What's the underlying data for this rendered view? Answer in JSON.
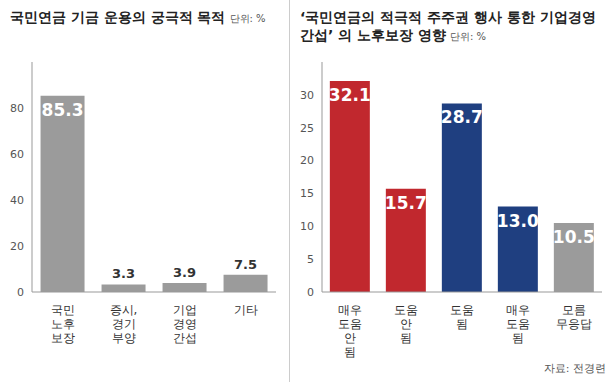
{
  "chart_data": [
    {
      "type": "bar",
      "title": "국민연금 기금 운용의 궁극적 목적",
      "subtitle": "단위: %",
      "categories": [
        "국민 노후 보장",
        "증시, 경기 부양",
        "기업 경영 간섭",
        "기타"
      ],
      "values": [
        85.3,
        3.3,
        3.9,
        7.5
      ],
      "color": "#9b9b9b",
      "ylim": [
        0,
        100
      ],
      "yticks": [
        0,
        20,
        40,
        60,
        80
      ],
      "grid": false,
      "data_labels": true
    },
    {
      "type": "bar",
      "title": "‘국민연금의 적극적 주주권 행사 통한 기업경영 간섭’ 의 노후보장 영향",
      "subtitle": "단위: %",
      "categories": [
        "매우 도움 안 됨",
        "도움 안 됨",
        "도움 됨",
        "매우 도움 됨",
        "모름 무응답"
      ],
      "values": [
        32.1,
        15.7,
        28.7,
        13.0,
        10.5
      ],
      "value_labels": [
        "32.1",
        "15.7",
        "28.7",
        "13.0",
        "10.5"
      ],
      "colors": [
        "#c1282e",
        "#c1282e",
        "#1f3f80",
        "#1f3f80",
        "#9b9b9b"
      ],
      "ylim": [
        0,
        35
      ],
      "yticks": [
        0,
        5,
        10,
        15,
        20,
        25,
        30
      ],
      "grid": false,
      "data_labels": true
    }
  ],
  "source": "자료: 전경련"
}
